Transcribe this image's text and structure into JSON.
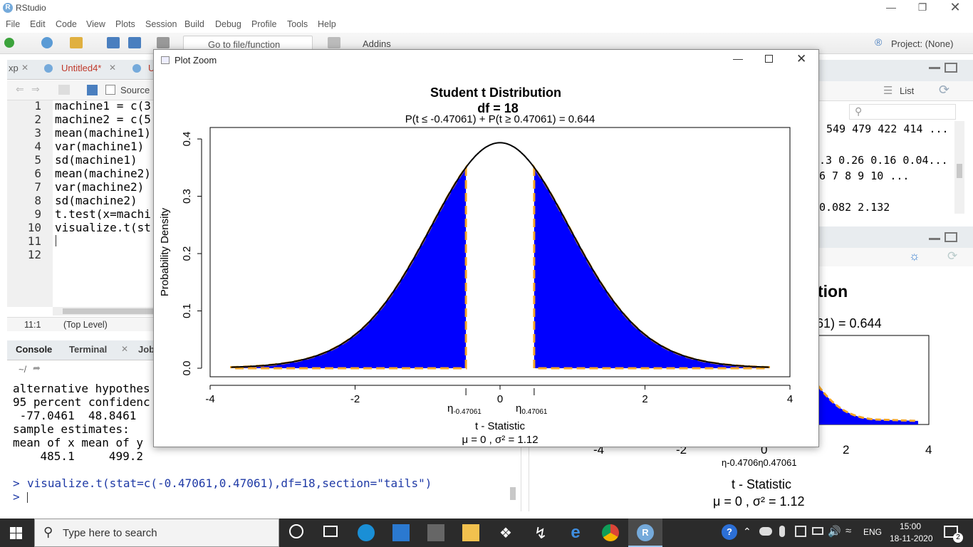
{
  "window": {
    "title": "RStudio",
    "logo": "R"
  },
  "menu": [
    "File",
    "Edit",
    "Code",
    "View",
    "Plots",
    "Session",
    "Build",
    "Debug",
    "Profile",
    "Tools",
    "Help"
  ],
  "toolbar": {
    "goto_placeholder": "Go to file/function",
    "addins_label": "Addins",
    "project_label": "Project: (None)"
  },
  "source": {
    "tabs": [
      {
        "label": "xp"
      },
      {
        "label": "Untitled4*"
      },
      {
        "label": "U"
      }
    ],
    "source_on_save": "Source",
    "lines": [
      {
        "n": "1",
        "code": "machine1 = c(3"
      },
      {
        "n": "2",
        "code": "machine2 = c(5"
      },
      {
        "n": "3",
        "code": "mean(machine1)"
      },
      {
        "n": "4",
        "code": "var(machine1)"
      },
      {
        "n": "5",
        "code": "sd(machine1)"
      },
      {
        "n": "6",
        "code": "mean(machine2)"
      },
      {
        "n": "7",
        "code": "var(machine2)"
      },
      {
        "n": "8",
        "code": "sd(machine2)"
      },
      {
        "n": "9",
        "code": "t.test(x=machi"
      },
      {
        "n": "10",
        "code": "visualize.t(st"
      },
      {
        "n": "11",
        "code": ""
      },
      {
        "n": "12",
        "code": ""
      }
    ],
    "cursor_pos": "11:1",
    "scope": "(Top Level)"
  },
  "console": {
    "tabs": [
      "Console",
      "Terminal",
      "Job"
    ],
    "path": "~/",
    "lines": [
      "alternative hypothes",
      "95 percent confidenc",
      " -77.0461  48.8461",
      "sample estimates:",
      "mean of x mean of y",
      "    485.1     499.2"
    ],
    "command": "visualize.t(stat=c(-0.47061,0.47061),df=18,section=\"tails\")",
    "prompt": ">"
  },
  "environment": {
    "view_label": "List",
    "rows": [
      "549 479 422 414 ...",
      ".3 0.26 0.16 0.04...",
      "6 7 8 9 10 ...",
      "",
      "0.082 2.132"
    ]
  },
  "plot_zoom": {
    "window_title": "Plot Zoom",
    "title": "Student t Distribution",
    "subtitle": "df  =  18",
    "prob_text": "P(t ≤ -0.47061) + P(t ≥ 0.47061) = 0.644",
    "ylabel": "Probability Density",
    "xlabel": "t - Statistic",
    "stats_text": "μ =  0 , σ² =  1.12",
    "eta_left": "η",
    "eta_left_sub": "-0.47061",
    "eta_right": "η",
    "eta_right_sub": "0.47061"
  },
  "plot_pane": {
    "title_fragment": "tion",
    "prob_fragment": "61) = 0.644",
    "xticks": [
      "-4",
      "-2",
      "0",
      "2",
      "4"
    ],
    "eta_text": "η-0.4706η0.47061",
    "xlabel": "t - Statistic",
    "stats_text": "μ =  0 , σ² =  1.12"
  },
  "chart_data": {
    "type": "area",
    "title": "Student t Distribution",
    "subtitle": "df  =  18",
    "xlabel": "t - Statistic",
    "ylabel": "Probability Density",
    "xlim": [
      -4,
      4
    ],
    "ylim": [
      0,
      0.4
    ],
    "xticks": [
      "-4",
      "-2",
      "0",
      "2",
      "4"
    ],
    "yticks": [
      "0.0",
      "0.1",
      "0.2",
      "0.3",
      "0.4"
    ],
    "df": 18,
    "shaded_regions": [
      [
        -3.71,
        -0.47061
      ],
      [
        0.47061,
        3.71
      ]
    ],
    "colors": {
      "fill": "#0000ff",
      "boundary": "#f5a623",
      "curve": "#000000"
    }
  },
  "taskbar": {
    "search_placeholder": "Type here to search",
    "time": "15:00",
    "date": "18-11-2020",
    "lang": "ENG",
    "notifications": "2"
  }
}
